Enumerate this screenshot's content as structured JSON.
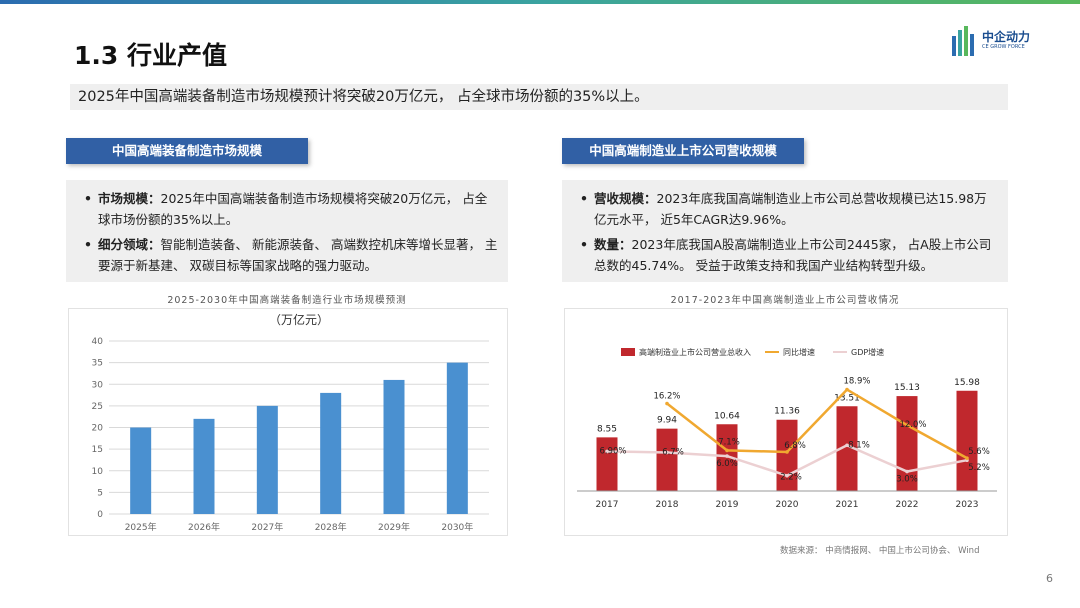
{
  "slide": {
    "title": "1.3 行业产值",
    "summary": "2025年中国高端装备制造市场规模预计将突破20万亿元， 占全球市场份额的35%以上。",
    "page_number": "6",
    "source": "数据来源： 中商情报网、 中国上市公司协会、 Wind"
  },
  "logo": {
    "name": "中企动力",
    "subtitle": "CE GROW FORCE",
    "colors": [
      "#2b6cb0",
      "#3aa3a0",
      "#58b85c"
    ]
  },
  "left_section": {
    "header": "中国高端装备制造市场规模",
    "bullets": [
      {
        "label": "市场规模：",
        "text": "2025年中国高端装备制造市场规模将突破20万亿元， 占全球市场份额的35%以上。"
      },
      {
        "label": "细分领域：",
        "text": "智能制造装备、 新能源装备、 高端数控机床等增长显著， 主要源于新基建、 双碳目标等国家战略的强力驱动。"
      }
    ],
    "chart_caption": "2025-2030年中国高端装备制造行业市场规模预测"
  },
  "right_section": {
    "header": "中国高端制造业上市公司营收规模",
    "bullets": [
      {
        "label": "营收规模：",
        "text": "2023年底我国高端制造业上市公司总营收规模已达15.98万亿元水平， 近5年CAGR达9.96%。"
      },
      {
        "label": "数量：",
        "text": "2023年底我国A股高端制造业上市公司2445家， 占A股上市公司总数的45.74%。 受益于政策支持和我国产业结构转型升级。"
      }
    ],
    "chart_caption": "2017-2023年中国高端制造业上市公司营收情况"
  },
  "chart_data": [
    {
      "type": "bar",
      "title": "（万亿元）",
      "categories": [
        "2025年",
        "2026年",
        "2027年",
        "2028年",
        "2029年",
        "2030年"
      ],
      "values": [
        20,
        22,
        25,
        28,
        31,
        35
      ],
      "ylim": [
        0,
        40
      ],
      "yticks": [
        0,
        5,
        10,
        15,
        20,
        25,
        30,
        35,
        40
      ],
      "grid": true,
      "bar_color": "#4a90d0"
    },
    {
      "type": "bar+line",
      "categories": [
        "2017",
        "2018",
        "2019",
        "2020",
        "2021",
        "2022",
        "2023"
      ],
      "legend_position": "top",
      "series": [
        {
          "name": "高端制造业上市公司营业总收入",
          "kind": "bar",
          "color": "#c0282d",
          "values": [
            8.55,
            9.94,
            10.64,
            11.36,
            13.51,
            15.13,
            15.98
          ],
          "labels": [
            "8.55",
            "9.94",
            "10.64",
            "11.36",
            "13.51",
            "15.13",
            "15.98"
          ]
        },
        {
          "name": "同比增速",
          "kind": "line",
          "color": "#f0a830",
          "values": [
            null,
            16.2,
            7.1,
            6.8,
            18.9,
            12.0,
            5.6
          ],
          "labels": [
            "",
            "16.2%",
            "7.1%",
            "6.8%",
            "18.9%",
            "12.0%",
            "5.6%"
          ]
        },
        {
          "name": "GDP增速",
          "kind": "line",
          "color": "#ecd0d2",
          "values": [
            6.9,
            6.7,
            6.0,
            2.2,
            8.1,
            3.0,
            5.2
          ],
          "labels": [
            "6.90%",
            "6.7%",
            "6.0%",
            "2.2%",
            "8.1%",
            "3.0%",
            "5.2%"
          ]
        }
      ]
    }
  ]
}
